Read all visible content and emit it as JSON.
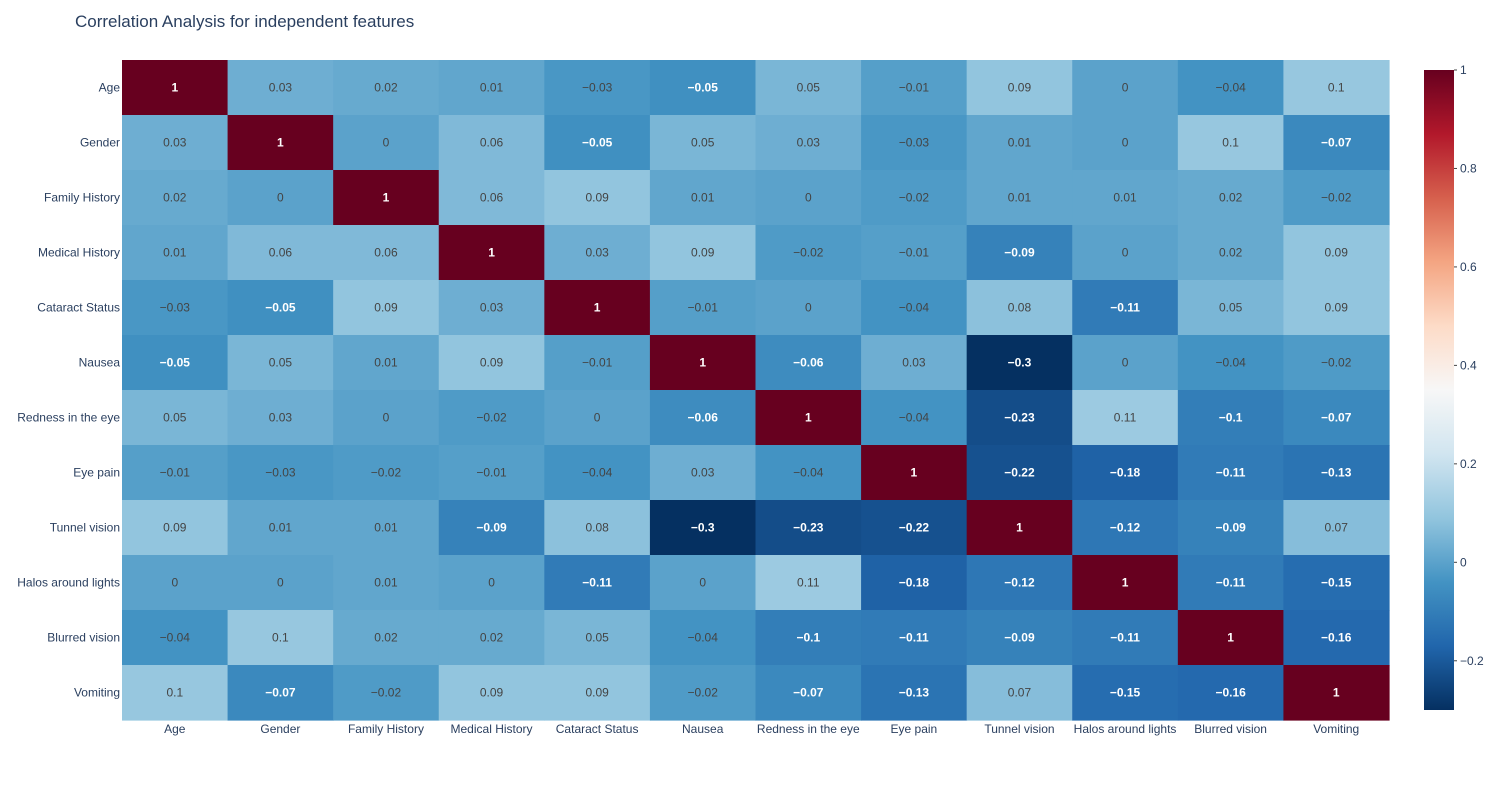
{
  "chart_data": {
    "type": "heatmap",
    "title": "Correlation Analysis for independent features",
    "x": [
      "Age",
      "Gender",
      "Family History",
      "Medical History",
      "Cataract Status",
      "Nausea",
      "Redness in the eye",
      "Eye pain",
      "Tunnel vision",
      "Halos around lights",
      "Blurred vision",
      "Vomiting"
    ],
    "y": [
      "Age",
      "Gender",
      "Family History",
      "Medical History",
      "Cataract Status",
      "Nausea",
      "Redness in the eye",
      "Eye pain",
      "Tunnel vision",
      "Halos around lights",
      "Blurred vision",
      "Vomiting"
    ],
    "z": [
      [
        1,
        0.03,
        0.02,
        0.01,
        -0.03,
        -0.05,
        0.05,
        -0.01,
        0.09,
        0,
        -0.04,
        0.1
      ],
      [
        0.03,
        1,
        0,
        0.06,
        -0.05,
        0.05,
        0.03,
        -0.03,
        0.01,
        0,
        0.1,
        -0.07
      ],
      [
        0.02,
        0,
        1,
        0.06,
        0.09,
        0.01,
        0,
        -0.02,
        0.01,
        0.01,
        0.02,
        -0.02
      ],
      [
        0.01,
        0.06,
        0.06,
        1,
        0.03,
        0.09,
        -0.02,
        -0.01,
        -0.09,
        0,
        0.02,
        0.09
      ],
      [
        -0.03,
        -0.05,
        0.09,
        0.03,
        1,
        -0.01,
        0,
        -0.04,
        0.08,
        -0.11,
        0.05,
        0.09
      ],
      [
        -0.05,
        0.05,
        0.01,
        0.09,
        -0.01,
        1,
        -0.06,
        0.03,
        -0.3,
        0,
        -0.04,
        -0.02
      ],
      [
        0.05,
        0.03,
        0,
        -0.02,
        0,
        -0.06,
        1,
        -0.04,
        -0.23,
        0.11,
        -0.1,
        -0.07
      ],
      [
        -0.01,
        -0.03,
        -0.02,
        -0.01,
        -0.04,
        0.03,
        -0.04,
        1,
        -0.22,
        -0.18,
        -0.11,
        -0.13
      ],
      [
        0.09,
        0.01,
        0.01,
        -0.09,
        0.08,
        -0.3,
        -0.23,
        -0.22,
        1,
        -0.12,
        -0.09,
        0.07
      ],
      [
        0,
        0,
        0.01,
        0,
        -0.11,
        0,
        0.11,
        -0.18,
        -0.12,
        1,
        -0.11,
        -0.15
      ],
      [
        -0.04,
        0.1,
        0.02,
        0.02,
        0.05,
        -0.04,
        -0.1,
        -0.11,
        -0.09,
        -0.11,
        1,
        -0.16
      ],
      [
        0.1,
        -0.07,
        -0.02,
        0.09,
        0.09,
        -0.02,
        -0.07,
        -0.13,
        0.07,
        -0.15,
        -0.16,
        1
      ]
    ],
    "zmin": -0.3,
    "zmax": 1,
    "colorscale": "RdBu (reversed)",
    "colorscale_stops": [
      "#053061",
      "#2166ac",
      "#4393c3",
      "#92c5de",
      "#d1e5f0",
      "#f7f7f7",
      "#fddbc7",
      "#f4a582",
      "#d6604d",
      "#b2182b",
      "#67001f"
    ],
    "colorbar_ticks": [
      -0.2,
      0,
      0.2,
      0.4,
      0.6,
      0.8,
      1
    ],
    "colorbar_tick_labels": [
      "−0.2",
      "0",
      "0.2",
      "0.4",
      "0.6",
      "0.8",
      "1"
    ],
    "text_color_light": "#ffffff",
    "text_color_dark": "#444444",
    "axis_text_color": "#2a3f5f"
  }
}
